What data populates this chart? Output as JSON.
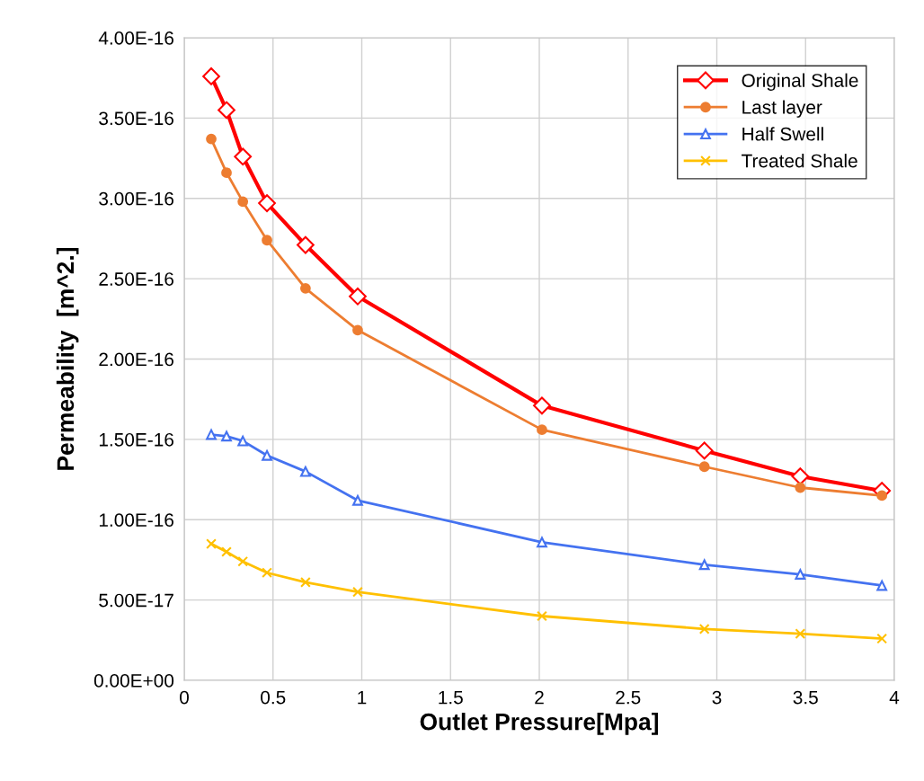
{
  "chart_data": {
    "type": "line",
    "xlabel": "Outlet Pressure[Mpa]",
    "ylabel": "Permeability  [m^2.]",
    "x": [
      0.152,
      0.238,
      0.33,
      0.466,
      0.683,
      0.977,
      2.015,
      2.93,
      3.47,
      3.93
    ],
    "series": [
      {
        "name": "Original Shale",
        "color": "#ff0000",
        "marker": "diamond",
        "values": [
          3.76e-16,
          3.55e-16,
          3.26e-16,
          2.97e-16,
          2.71e-16,
          2.39e-16,
          1.71e-16,
          1.43e-16,
          1.27e-16,
          1.18e-16
        ]
      },
      {
        "name": "Last layer",
        "color": "#ed7d31",
        "marker": "circle",
        "values": [
          3.37e-16,
          3.16e-16,
          2.98e-16,
          2.74e-16,
          2.44e-16,
          2.18e-16,
          1.56e-16,
          1.33e-16,
          1.2e-16,
          1.15e-16
        ]
      },
      {
        "name": "Half Swell",
        "color": "#4472f0",
        "marker": "triangle",
        "values": [
          1.53e-16,
          1.52e-16,
          1.49e-16,
          1.4e-16,
          1.3e-16,
          1.12e-16,
          8.6e-17,
          7.2e-17,
          6.6e-17,
          5.9e-17
        ]
      },
      {
        "name": "Treated Shale",
        "color": "#ffc000",
        "marker": "cross",
        "values": [
          8.5e-17,
          8e-17,
          7.4e-17,
          6.7e-17,
          6.1e-17,
          5.5e-17,
          4e-17,
          3.2e-17,
          2.9e-17,
          2.6e-17
        ]
      }
    ],
    "xlim": [
      0,
      4
    ],
    "xticks": [
      0,
      0.5,
      1,
      1.5,
      2,
      2.5,
      3,
      3.5,
      4
    ],
    "ylim": [
      0,
      4e-16
    ],
    "yticks": [
      {
        "value": 0,
        "label": "0.00E+00"
      },
      {
        "value": 5e-17,
        "label": "5.00E-17"
      },
      {
        "value": 1e-16,
        "label": "1.00E-16"
      },
      {
        "value": 1.5e-16,
        "label": "1.50E-16"
      },
      {
        "value": 2e-16,
        "label": "2.00E-16"
      },
      {
        "value": 2.5e-16,
        "label": "2.50E-16"
      },
      {
        "value": 3e-16,
        "label": "3.00E-16"
      },
      {
        "value": 3.5e-16,
        "label": "3.50E-16"
      },
      {
        "value": 4e-16,
        "label": "4.00E-16"
      }
    ],
    "grid": true,
    "legend": "top right"
  }
}
